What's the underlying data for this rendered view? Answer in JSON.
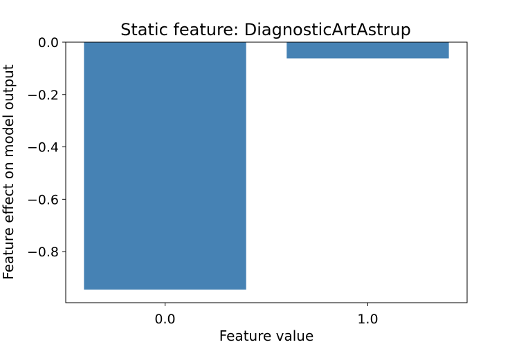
{
  "chart_data": {
    "type": "bar",
    "title": "Static feature: DiagnosticArtAstrup",
    "xlabel": "Feature value",
    "ylabel": "Feature effect on model output",
    "categories": [
      "0.0",
      "1.0"
    ],
    "values": [
      -0.945,
      -0.062
    ],
    "ylim": [
      -0.995,
      0.0
    ],
    "yticks": [
      0.0,
      -0.2,
      -0.4,
      -0.6,
      -0.8
    ],
    "ytick_labels": [
      "0.0",
      "−0.2",
      "−0.4",
      "−0.6",
      "−0.8"
    ],
    "bar_color": "#4682b4",
    "grid": false,
    "legend": "none"
  }
}
